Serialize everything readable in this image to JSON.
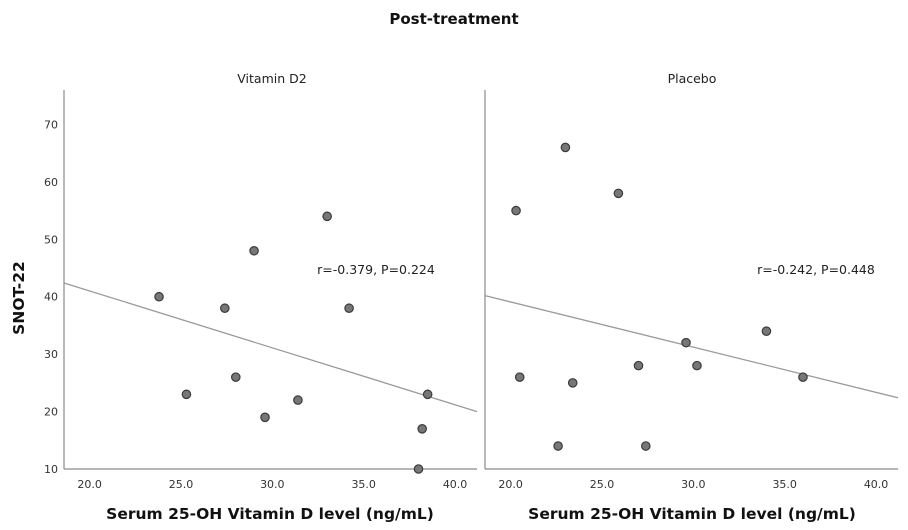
{
  "chart_data": {
    "type": "scatter",
    "title": "Post-treatment",
    "ylabel": "SNOT-22",
    "ylim": [
      10,
      76
    ],
    "yticks": [
      "10",
      "20",
      "30",
      "40",
      "50",
      "60",
      "70"
    ],
    "ytick_values": [
      10,
      20,
      30,
      40,
      50,
      60,
      70
    ],
    "grid": false,
    "panels": [
      {
        "name": "Vitamin D2",
        "xlabel": "Serum 25-OH Vitamin D level (ng/mL)",
        "xlim": [
          18.6,
          41.2
        ],
        "xticks": [
          "20.0",
          "25.0",
          "30.0",
          "35.0",
          "40.0"
        ],
        "xtick_values": [
          20,
          25,
          30,
          35,
          40
        ],
        "annotation": "r=-0.379, P=0.224",
        "points": [
          {
            "x": 23.8,
            "y": 40
          },
          {
            "x": 25.3,
            "y": 23
          },
          {
            "x": 27.4,
            "y": 38
          },
          {
            "x": 28.0,
            "y": 26
          },
          {
            "x": 29.0,
            "y": 48
          },
          {
            "x": 29.6,
            "y": 19
          },
          {
            "x": 31.4,
            "y": 22
          },
          {
            "x": 33.0,
            "y": 54
          },
          {
            "x": 34.2,
            "y": 38
          },
          {
            "x": 38.5,
            "y": 23
          },
          {
            "x": 38.2,
            "y": 17
          },
          {
            "x": 38.0,
            "y": 10
          }
        ],
        "fit_line": [
          {
            "x": 18.6,
            "y": 42.4
          },
          {
            "x": 41.2,
            "y": 20.0
          }
        ]
      },
      {
        "name": "Placebo",
        "xlabel": "Serum 25-OH Vitamin D level (ng/mL)",
        "xlim": [
          18.6,
          41.2
        ],
        "xticks": [
          "20.0",
          "25.0",
          "30.0",
          "35.0",
          "40.0"
        ],
        "xtick_values": [
          20,
          25,
          30,
          35,
          40
        ],
        "annotation": "r=-0.242, P=0.448",
        "points": [
          {
            "x": 20.3,
            "y": 55
          },
          {
            "x": 20.5,
            "y": 26
          },
          {
            "x": 23.0,
            "y": 66
          },
          {
            "x": 22.6,
            "y": 14
          },
          {
            "x": 23.4,
            "y": 25
          },
          {
            "x": 25.9,
            "y": 58
          },
          {
            "x": 27.4,
            "y": 14
          },
          {
            "x": 27.0,
            "y": 28
          },
          {
            "x": 29.6,
            "y": 32
          },
          {
            "x": 30.2,
            "y": 28
          },
          {
            "x": 34.0,
            "y": 34
          },
          {
            "x": 36.0,
            "y": 26
          }
        ],
        "fit_line": [
          {
            "x": 18.6,
            "y": 40.2
          },
          {
            "x": 41.2,
            "y": 22.4
          }
        ]
      }
    ]
  },
  "colors": {
    "point_fill": "#777777",
    "point_stroke": "#3a3a3a",
    "line": "#9a9a9a",
    "axis": "#8a8a8a"
  }
}
